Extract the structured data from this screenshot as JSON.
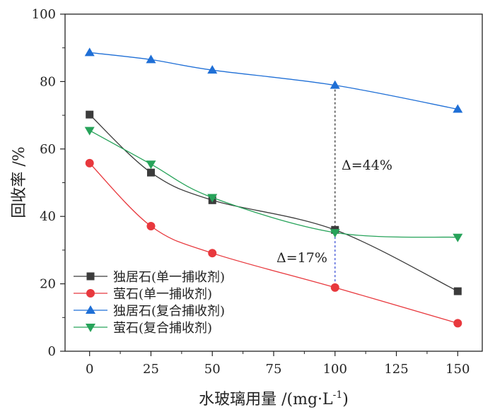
{
  "chart_data": {
    "type": "line",
    "xlabel": "水玻璃用量 /(mg·L",
    "xlabel_sup": "-1",
    "xlabel_close": ")",
    "ylabel": "回收率 /%",
    "xlim": [
      -10,
      160
    ],
    "ylim": [
      0,
      100
    ],
    "x_ticks": [
      0,
      25,
      50,
      75,
      100,
      125,
      150
    ],
    "y_ticks": [
      0,
      20,
      40,
      60,
      80,
      100
    ],
    "x": [
      0,
      25,
      50,
      100,
      150
    ],
    "series": [
      {
        "name": "独居石(单一捕收剂)",
        "marker": "square",
        "color": "#3b3b3b",
        "values": [
          70.2,
          53.0,
          44.8,
          36.0,
          17.8
        ]
      },
      {
        "name": "萤石(单一捕收剂)",
        "marker": "circle",
        "color": "#e8383d",
        "values": [
          55.8,
          37.1,
          29.1,
          18.9,
          8.3
        ]
      },
      {
        "name": "独居石(复合捕收剂)",
        "marker": "triangle-up",
        "color": "#1f6fd6",
        "values": [
          88.6,
          86.5,
          83.4,
          78.9,
          71.8
        ]
      },
      {
        "name": "萤石(复合捕收剂)",
        "marker": "triangle-down",
        "color": "#27a35a",
        "values": [
          65.5,
          55.5,
          45.6,
          35.2,
          33.8
        ]
      }
    ],
    "annotations": [
      {
        "text": "Δ=44%",
        "x": 100,
        "y_from": 35.2,
        "y_to": 78.9,
        "line_color": "#333333"
      },
      {
        "text": "Δ=17%",
        "x": 100,
        "y_from": 18.9,
        "y_to": 35.2,
        "line_color": "#3a4fd6"
      }
    ],
    "legend_position": "bottom-left",
    "grid": false
  }
}
